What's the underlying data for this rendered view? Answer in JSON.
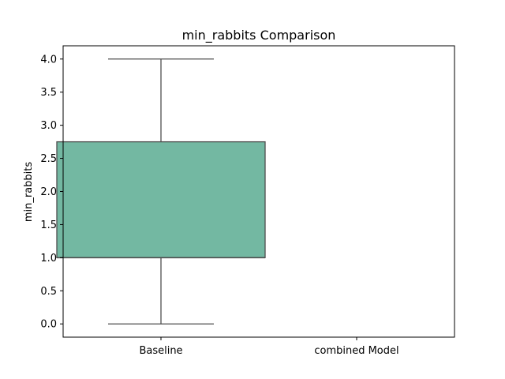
{
  "chart_data": {
    "type": "box",
    "title": "min_rabbits Comparison",
    "xlabel": "",
    "ylabel": "min_rabbits",
    "categories": [
      "Baseline",
      "combined Model"
    ],
    "ylim": [
      -0.2,
      4.2
    ],
    "yticks": [
      0.0,
      0.5,
      1.0,
      1.5,
      2.0,
      2.5,
      3.0,
      3.5,
      4.0
    ],
    "ytick_labels": [
      "0.0",
      "0.5",
      "1.0",
      "1.5",
      "2.0",
      "2.5",
      "3.0",
      "3.5",
      "4.0"
    ],
    "grid": false,
    "boxes": [
      {
        "category": "Baseline",
        "whisker_low": 0.0,
        "q1": 1.0,
        "median": 1.0,
        "q3": 2.75,
        "whisker_high": 4.0
      }
    ],
    "box_color": "#73b8a2",
    "line_color": "#4d4d4d"
  }
}
